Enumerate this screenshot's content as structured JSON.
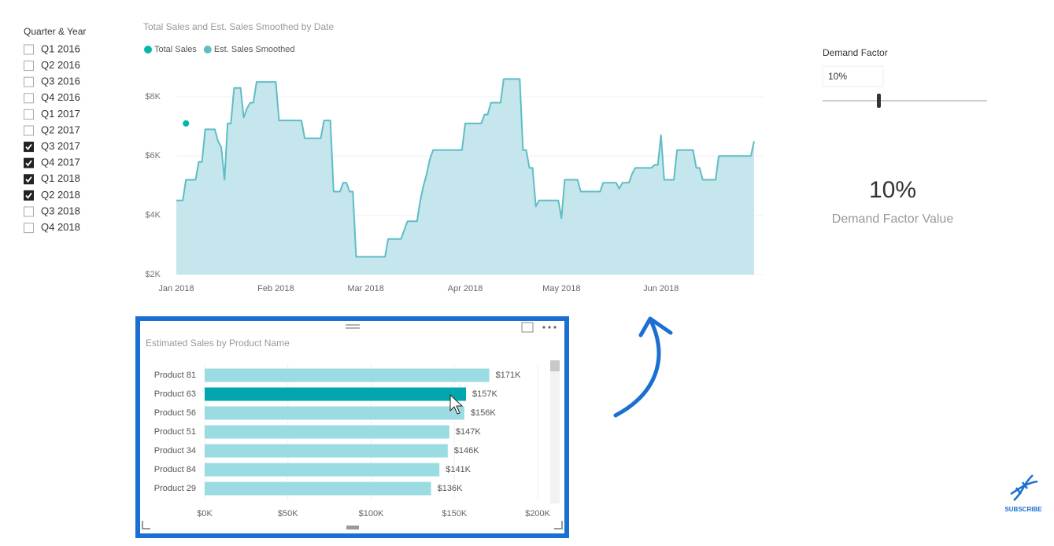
{
  "chart_data": [
    {
      "type": "area",
      "title": "Total Sales and Est. Sales Smoothed by Date",
      "categories": [
        "Jan 2018",
        null,
        null,
        null,
        null,
        null,
        null,
        null,
        null,
        null,
        null,
        null,
        null,
        null,
        null,
        null,
        null,
        null,
        null,
        null,
        null,
        null,
        null,
        null,
        null,
        null,
        null,
        null,
        null,
        null,
        null,
        "Feb 2018",
        null,
        null,
        null,
        null,
        null,
        null,
        null,
        null,
        null,
        null,
        null,
        null,
        null,
        null,
        null,
        null,
        null,
        null,
        null,
        null,
        null,
        null,
        null,
        null,
        null,
        null,
        null,
        "Mar 2018",
        null,
        null,
        null,
        null,
        null,
        null,
        null,
        null,
        null,
        null,
        null,
        null,
        null,
        null,
        null,
        null,
        null,
        null,
        null,
        null,
        null,
        null,
        null,
        null,
        null,
        null,
        null,
        null,
        null,
        null,
        "Apr 2018",
        null,
        null,
        null,
        null,
        null,
        null,
        null,
        null,
        null,
        null,
        null,
        null,
        null,
        null,
        null,
        null,
        null,
        null,
        null,
        null,
        null,
        null,
        null,
        null,
        null,
        null,
        null,
        null,
        null,
        "May 2018",
        null,
        null,
        null,
        null,
        null,
        null,
        null,
        null,
        null,
        null,
        null,
        null,
        null,
        null,
        null,
        null,
        null,
        null,
        null,
        null,
        null,
        null,
        null,
        null,
        null,
        null,
        null,
        null,
        null,
        null,
        "Jun 2018",
        null,
        null,
        null,
        null,
        null,
        null,
        null,
        null,
        null,
        null,
        null,
        null,
        null,
        null,
        null,
        null,
        null,
        null,
        null,
        null,
        null,
        null,
        null,
        null,
        null,
        null,
        null,
        null,
        null
      ],
      "series": [
        {
          "name": "Total Sales",
          "color": "#01B8AA",
          "mark": "point",
          "values": [
            null,
            null,
            null,
            7100,
            null,
            null,
            null,
            null,
            null,
            null,
            null,
            null,
            null,
            null,
            null,
            null,
            null,
            null,
            null,
            null,
            null,
            null,
            null,
            null,
            null,
            null,
            null,
            null,
            null,
            null,
            null,
            null,
            null,
            null,
            null,
            null,
            null,
            null,
            null,
            null,
            null,
            null,
            null,
            null,
            null,
            null,
            null,
            null,
            null,
            null,
            null,
            null,
            null,
            null,
            null,
            null,
            null,
            null,
            null,
            null,
            null,
            null,
            null,
            null,
            null,
            null,
            null,
            null,
            null,
            null,
            null,
            null,
            null,
            null,
            null,
            null,
            null,
            null,
            null,
            null,
            null,
            null,
            null,
            null,
            null,
            null,
            null,
            null,
            null,
            null,
            null,
            null,
            null,
            null,
            null,
            null,
            null,
            null,
            null,
            null,
            null,
            null,
            null,
            null,
            null,
            null,
            null,
            null,
            null,
            null,
            null,
            null,
            null,
            null,
            null,
            null,
            null,
            null,
            null,
            null,
            null,
            null,
            null,
            null,
            null,
            null,
            null,
            null,
            null,
            null,
            null,
            null,
            null,
            null,
            null,
            null,
            null,
            null,
            null,
            null,
            null,
            null,
            null,
            null,
            null,
            null,
            null,
            null,
            null,
            null,
            null,
            null,
            null,
            null,
            null,
            null,
            null,
            null,
            null,
            null,
            null,
            null,
            null,
            null,
            null,
            null,
            null,
            null,
            null,
            null,
            null,
            null,
            null,
            null,
            null,
            null,
            null,
            null,
            null,
            null,
            null
          ]
        },
        {
          "name": "Est. Sales Smoothed",
          "color": "#5FBDC6",
          "fill": "#C4E6EC",
          "mark": "area",
          "values": [
            4500,
            4500,
            4500,
            5200,
            5200,
            5200,
            5200,
            5800,
            5800,
            6900,
            6900,
            6900,
            6900,
            6500,
            6300,
            5200,
            7100,
            7100,
            8300,
            8300,
            8300,
            7300,
            7600,
            7800,
            7800,
            8500,
            8500,
            8500,
            8500,
            8500,
            8500,
            8500,
            7200,
            7200,
            7200,
            7200,
            7200,
            7200,
            7200,
            7200,
            6600,
            6600,
            6600,
            6600,
            6600,
            6600,
            7200,
            7200,
            7200,
            4800,
            4800,
            4800,
            5100,
            5100,
            4800,
            4800,
            2600,
            2600,
            2600,
            2600,
            2600,
            2600,
            2600,
            2600,
            2600,
            2600,
            3200,
            3200,
            3200,
            3200,
            3200,
            3500,
            3800,
            3800,
            3800,
            3800,
            4500,
            5000,
            5400,
            5900,
            6200,
            6200,
            6200,
            6200,
            6200,
            6200,
            6200,
            6200,
            6200,
            6200,
            7100,
            7100,
            7100,
            7100,
            7100,
            7100,
            7400,
            7400,
            7800,
            7800,
            7800,
            7800,
            8600,
            8600,
            8600,
            8600,
            8600,
            8600,
            6200,
            6200,
            5600,
            5600,
            4300,
            4500,
            4500,
            4500,
            4500,
            4500,
            4500,
            4500,
            3900,
            5200,
            5200,
            5200,
            5200,
            5200,
            4800,
            4800,
            4800,
            4800,
            4800,
            4800,
            4800,
            5100,
            5100,
            5100,
            5100,
            5100,
            4900,
            5100,
            5100,
            5100,
            5400,
            5600,
            5600,
            5600,
            5600,
            5600,
            5600,
            5700,
            5700,
            6700,
            5200,
            5200,
            5200,
            5200,
            6200,
            6200,
            6200,
            6200,
            6200,
            6200,
            5600,
            5600,
            5200,
            5200,
            5200,
            5200,
            5200,
            6000,
            6000,
            6000,
            6000,
            6000,
            6000,
            6000,
            6000,
            6000,
            6000,
            6000,
            6500
          ]
        }
      ],
      "ylim": [
        2000,
        9000
      ],
      "yticks": [
        {
          "value": 2000,
          "label": "$2K"
        },
        {
          "value": 4000,
          "label": "$4K"
        },
        {
          "value": 6000,
          "label": "$6K"
        },
        {
          "value": 8000,
          "label": "$8K"
        }
      ],
      "grid": true
    },
    {
      "type": "bar",
      "horizontal": true,
      "title": "Estimated Sales by Product Name",
      "categories": [
        "Product 81",
        "Product 63",
        "Product 56",
        "Product 51",
        "Product 34",
        "Product 84",
        "Product 29"
      ],
      "values": [
        171000,
        157000,
        156000,
        147000,
        146000,
        141000,
        136000
      ],
      "value_labels": [
        "$171K",
        "$157K",
        "$156K",
        "$147K",
        "$146K",
        "$141K",
        "$136K"
      ],
      "colors": [
        "#9ADCE2",
        "#01A6AE",
        "#9ADCE2",
        "#9ADCE2",
        "#9ADCE2",
        "#9ADCE2",
        "#9ADCE2"
      ],
      "xlim": [
        0,
        200000
      ],
      "xticks": [
        {
          "value": 0,
          "label": "$0K"
        },
        {
          "value": 50000,
          "label": "$50K"
        },
        {
          "value": 100000,
          "label": "$100K"
        },
        {
          "value": 150000,
          "label": "$150K"
        },
        {
          "value": 200000,
          "label": "$200K"
        }
      ],
      "grid": true
    }
  ],
  "slicer": {
    "title": "Quarter & Year",
    "items": [
      {
        "label": "Q1 2016",
        "checked": false
      },
      {
        "label": "Q2 2016",
        "checked": false
      },
      {
        "label": "Q3 2016",
        "checked": false
      },
      {
        "label": "Q4 2016",
        "checked": false
      },
      {
        "label": "Q1 2017",
        "checked": false
      },
      {
        "label": "Q2 2017",
        "checked": false
      },
      {
        "label": "Q3 2017",
        "checked": true
      },
      {
        "label": "Q4 2017",
        "checked": true
      },
      {
        "label": "Q1 2018",
        "checked": true
      },
      {
        "label": "Q2 2018",
        "checked": true
      },
      {
        "label": "Q3 2018",
        "checked": false
      },
      {
        "label": "Q4 2018",
        "checked": false
      }
    ]
  },
  "demand_factor": {
    "title": "Demand Factor",
    "value": "10%"
  },
  "card": {
    "value": "10%",
    "label": "Demand Factor Value"
  },
  "subscribe": "SUBSCRIBE"
}
